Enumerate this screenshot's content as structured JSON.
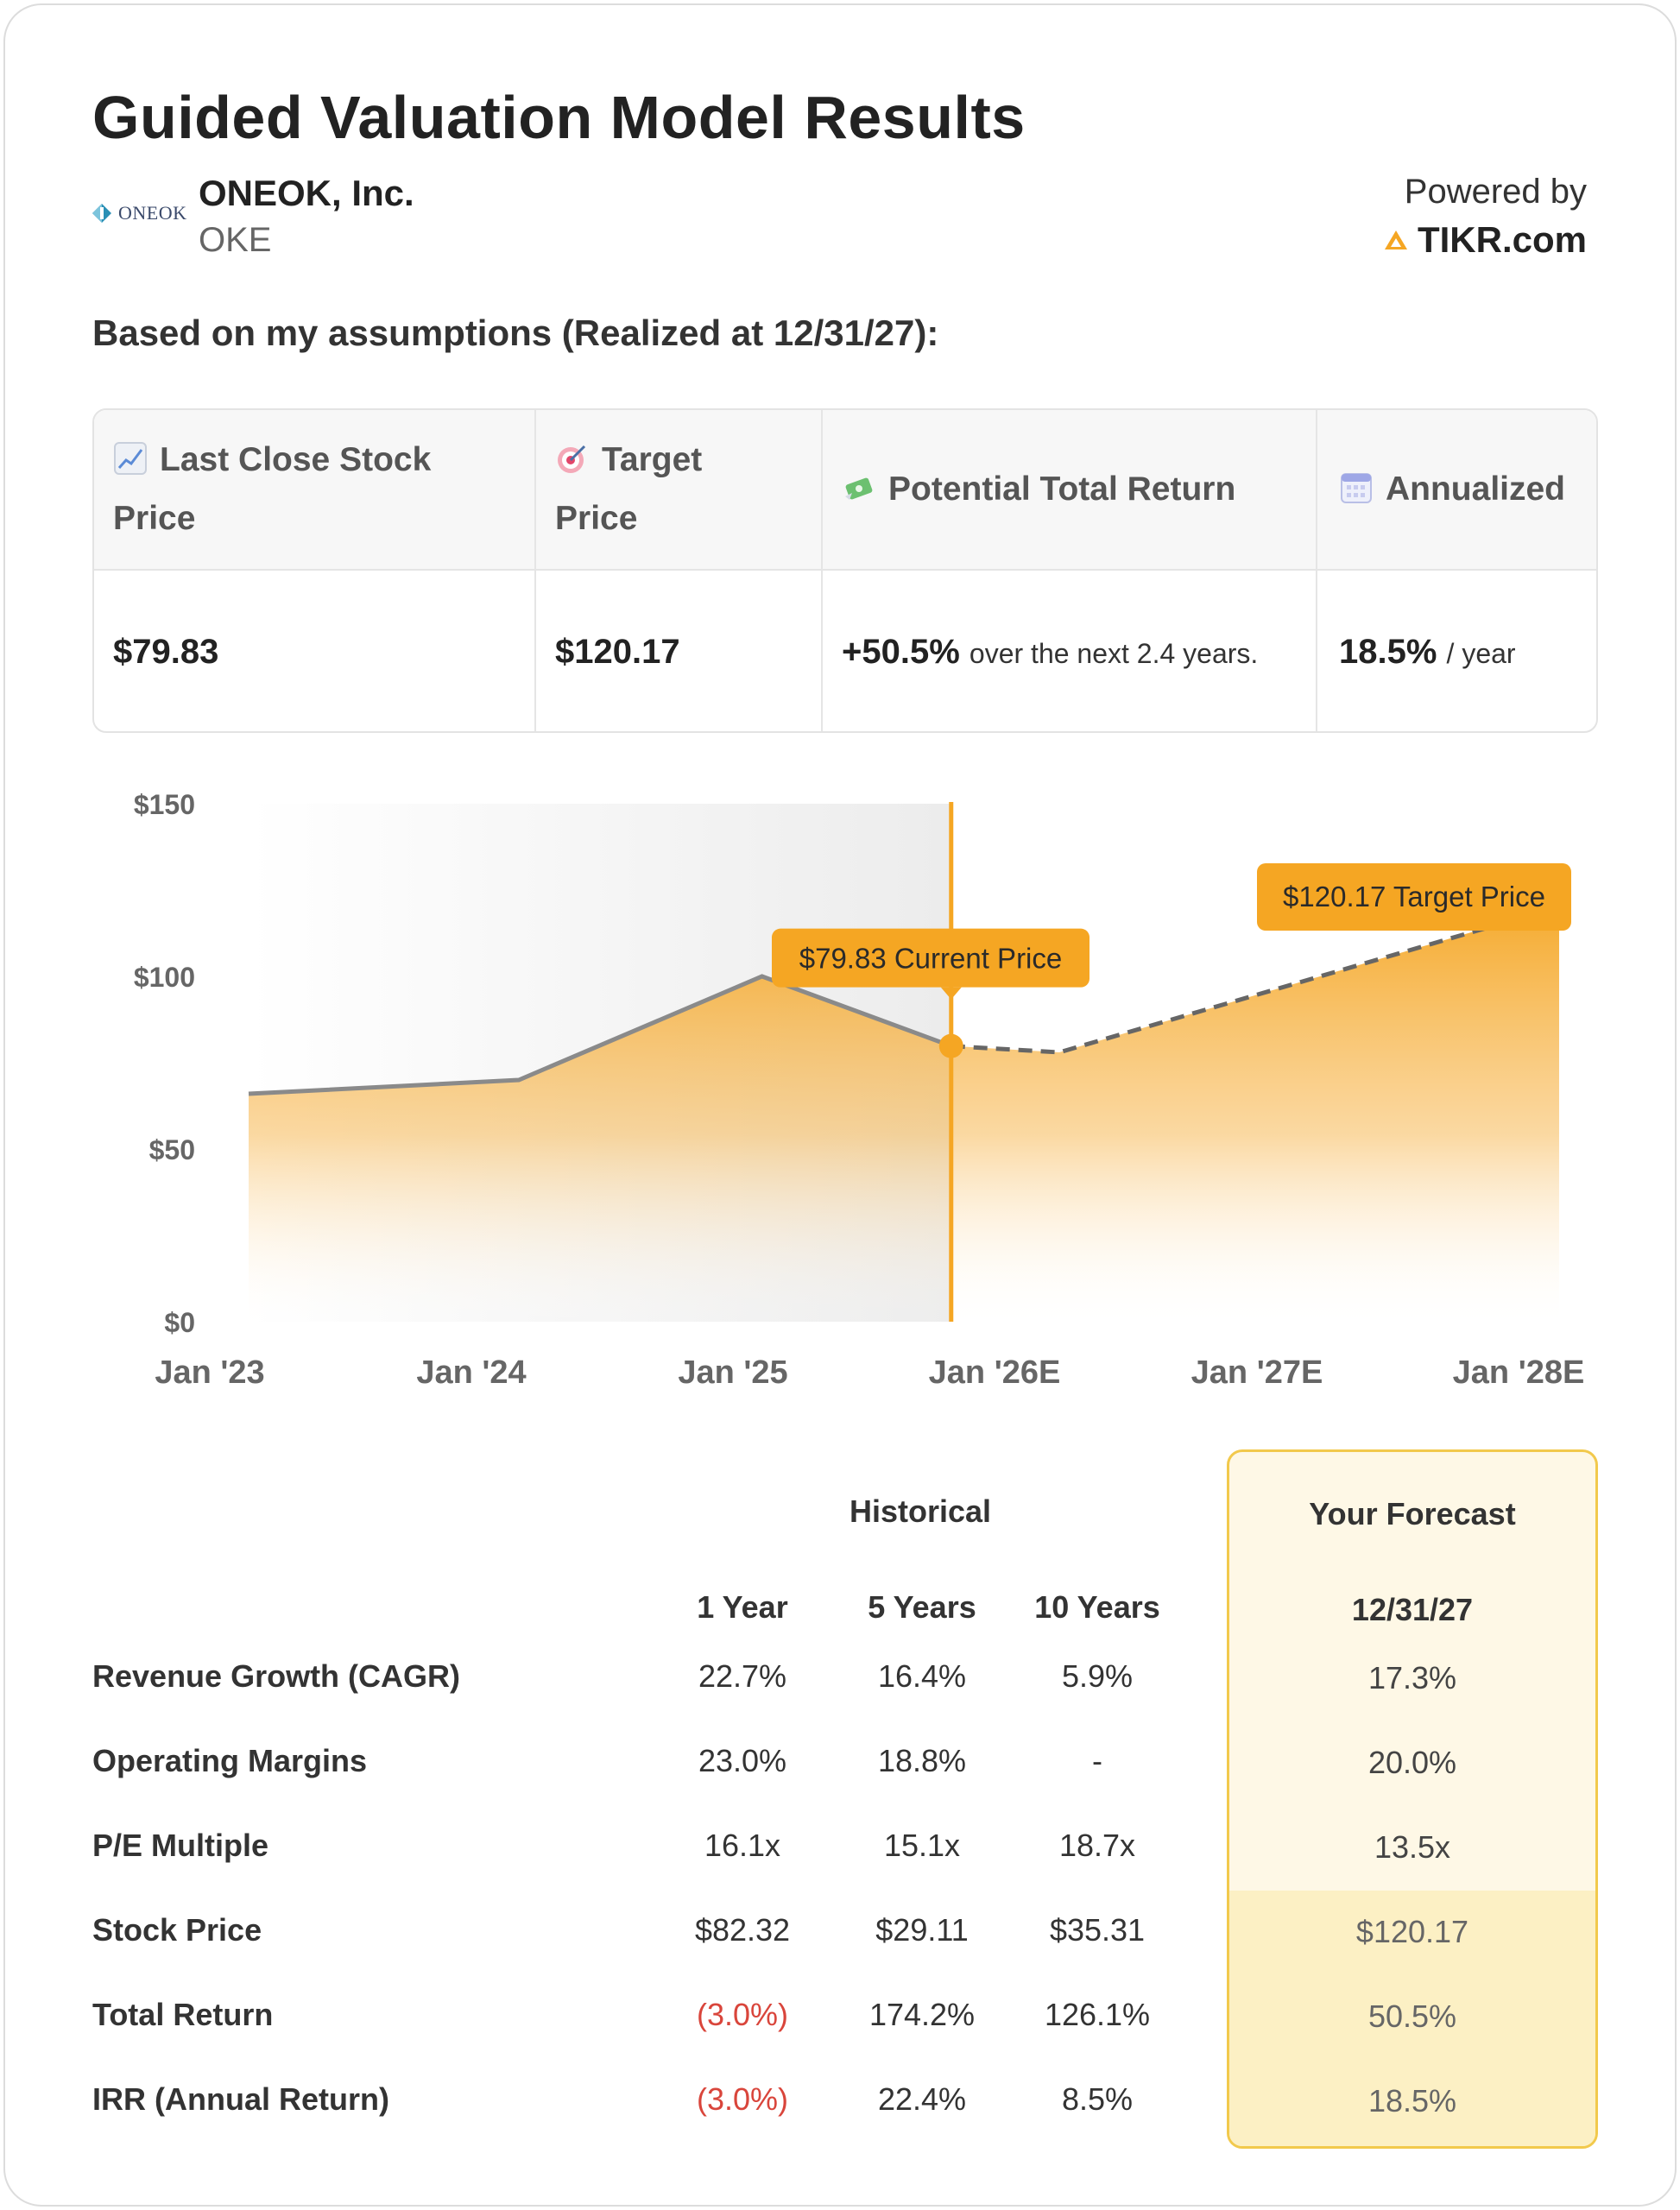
{
  "header": {
    "title": "Guided Valuation Model Results",
    "company_name": "ONEOK, Inc.",
    "ticker": "OKE",
    "logo_text": "ONEOK",
    "powered_by": "Powered by",
    "provider": "TIKR.com"
  },
  "assumptions_heading": "Based on my assumptions (Realized at 12/31/27):",
  "stats": {
    "headers": {
      "last_close_line1": "Last Close Stock",
      "last_close_line2": "Price",
      "target_line1": "Target",
      "target_line2": "Price",
      "potential_return": "Potential Total Return",
      "annualized": "Annualized"
    },
    "values": {
      "last_close": "$79.83",
      "target": "$120.17",
      "potential_return": "+50.5%",
      "potential_return_note": "over the next 2.4 years.",
      "annualized": "18.5%",
      "annualized_unit": "/ year"
    }
  },
  "chart_data": {
    "type": "area",
    "x": [
      "Jan '23",
      "Jan '24",
      "Jan '25",
      "Jan '26E",
      "Jan '27E",
      "Jan '28E"
    ],
    "y_ticks": [
      "$150",
      "$100",
      "$50",
      "$0"
    ],
    "ylim": [
      0,
      150
    ],
    "series": [
      {
        "points": [
          {
            "x": 2023.15,
            "y": 66
          },
          {
            "x": 2024.15,
            "y": 70
          },
          {
            "x": 2025.05,
            "y": 100
          },
          {
            "x": 2025.75,
            "y": 79.83
          }
        ]
      },
      {
        "points": [
          {
            "x": 2025.75,
            "y": 79.83
          },
          {
            "x": 2026.15,
            "y": 78
          },
          {
            "x": 2028.0,
            "y": 120.17
          }
        ]
      }
    ],
    "annotations": {
      "current": "$79.83 Current Price",
      "target": "$120.17 Target Price"
    },
    "colors": {
      "accent": "#f5a623",
      "history_line": "#8a8a8a",
      "forecast_line": "#666666"
    }
  },
  "table": {
    "historical_label": "Historical",
    "forecast_label": "Your Forecast",
    "columns": [
      "1 Year",
      "5 Years",
      "10 Years"
    ],
    "forecast_column": "12/31/27",
    "rows": [
      {
        "label": "Revenue Growth (CAGR)",
        "values": [
          "22.7%",
          "16.4%",
          "5.9%"
        ],
        "forecast": "17.3%"
      },
      {
        "label": "Operating Margins",
        "values": [
          "23.0%",
          "18.8%",
          "-"
        ],
        "forecast": "20.0%"
      },
      {
        "label": "P/E Multiple",
        "values": [
          "16.1x",
          "15.1x",
          "18.7x"
        ],
        "forecast": "13.5x"
      },
      {
        "label": "Stock Price",
        "values": [
          "$82.32",
          "$29.11",
          "$35.31"
        ],
        "forecast": "$120.17"
      },
      {
        "label": "Total Return",
        "values": [
          "(3.0%)",
          "174.2%",
          "126.1%"
        ],
        "forecast": "50.5%"
      },
      {
        "label": "IRR (Annual Return)",
        "values": [
          "(3.0%)",
          "22.4%",
          "8.5%"
        ],
        "forecast": "18.5%"
      }
    ]
  }
}
